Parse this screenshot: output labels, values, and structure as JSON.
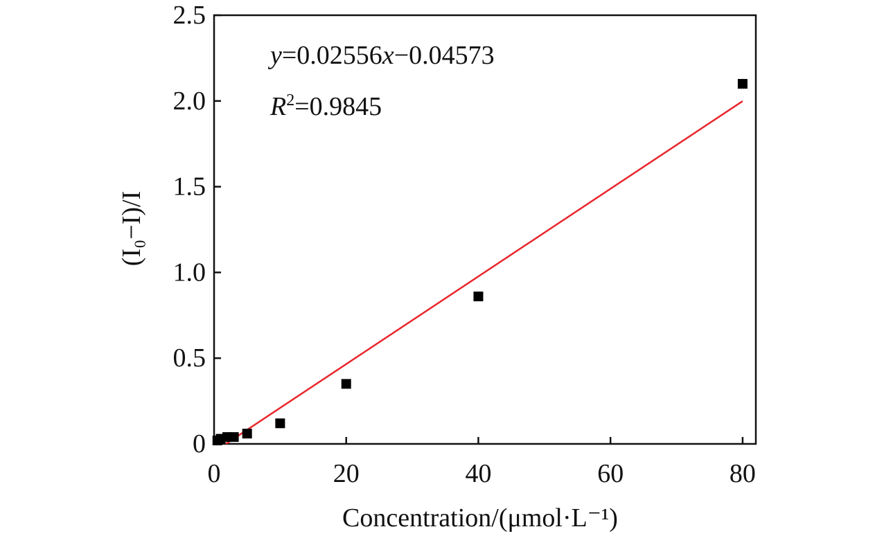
{
  "chart_data": {
    "type": "scatter",
    "title": "",
    "xlabel": "Concentration/(μmol·L⁻¹)",
    "ylabel": "(I₀−I)/I",
    "xlim": [
      0,
      82
    ],
    "ylim": [
      0,
      2.5
    ],
    "x_ticks": [
      0,
      20,
      40,
      60,
      80
    ],
    "x_tick_labels": [
      "0",
      "20",
      "40",
      "60",
      "80"
    ],
    "y_ticks": [
      0,
      0.5,
      1.0,
      1.5,
      2.0,
      2.5
    ],
    "y_tick_labels": [
      "0",
      "0.5",
      "1.0",
      "1.5",
      "2.0",
      "2.5"
    ],
    "grid": false,
    "series": [
      {
        "type": "scatter",
        "marker": "square",
        "color": "#000000",
        "x": [
          0.5,
          1,
          2,
          3,
          5,
          10,
          20,
          40,
          80
        ],
        "y": [
          0.02,
          0.03,
          0.04,
          0.04,
          0.06,
          0.12,
          0.35,
          0.86,
          2.1
        ]
      },
      {
        "type": "line",
        "color": "#e8262b",
        "fit": {
          "slope": 0.02556,
          "intercept": -0.04573
        },
        "x_range": [
          1.8,
          80
        ]
      }
    ],
    "annotations": {
      "equation": {
        "y": "y",
        "eq": "=0.02556",
        "x": "x",
        "rest": "−0.04573"
      },
      "r2": {
        "r": "R",
        "sup": "2",
        "val": "=0.9845"
      }
    }
  }
}
